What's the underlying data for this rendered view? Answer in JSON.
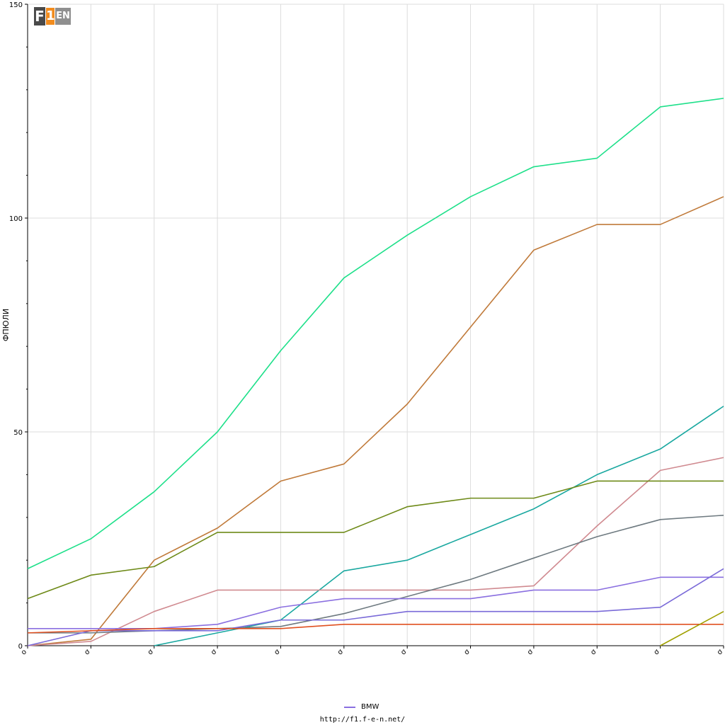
{
  "logo": {
    "text": "F1EN",
    "parts": [
      "F",
      "1",
      "EN"
    ],
    "colors": {
      "dark": "#4a4a4a",
      "orange": "#f28c1e",
      "gray": "#8f8f8f"
    }
  },
  "footer": {
    "url": "http://f1.f-e-n.net/"
  },
  "chart_data": {
    "type": "line",
    "title": "",
    "xlabel": "",
    "ylabel": "ФПЮЛИ",
    "ylim": [
      0,
      150
    ],
    "y_ticks": [
      0,
      50,
      100,
      150
    ],
    "x_tick_labels": [
      "o",
      "ơ",
      "ơ",
      "ơ",
      "ơ",
      "ơ",
      "ơ",
      "ơ",
      "ơ",
      "ơ",
      "ơ",
      "ơ"
    ],
    "grid": true,
    "legend_position": "bottom-center",
    "legend": [
      {
        "name": "BMW",
        "color": "#8a6fe0"
      }
    ],
    "series": [
      {
        "color": "#1ee08a",
        "values": [
          18,
          25,
          36,
          50,
          69,
          86,
          96,
          105,
          112,
          114,
          126,
          128
        ]
      },
      {
        "color": "#c07a3a",
        "values": [
          0,
          1.5,
          20,
          27.5,
          38.5,
          42.5,
          56.5,
          74.5,
          92.5,
          98.5,
          98.5,
          105
        ]
      },
      {
        "color": "#1aa8a0",
        "values": [
          null,
          null,
          0,
          3,
          6,
          17.5,
          20,
          26,
          32,
          40,
          46,
          56
        ]
      },
      {
        "color": "#d08a90",
        "values": [
          0,
          1,
          8,
          13,
          13,
          13,
          13,
          13,
          14,
          28,
          41,
          44
        ]
      },
      {
        "color": "#6e8a18",
        "values": [
          11,
          16.5,
          18.5,
          26.5,
          26.5,
          26.5,
          32.5,
          34.5,
          34.5,
          38.5,
          38.5,
          38.5
        ]
      },
      {
        "color": "#6e7a80",
        "values": [
          3,
          3,
          3.5,
          4,
          4.5,
          7.5,
          11.5,
          15.5,
          20.5,
          25.5,
          29.5,
          30.5
        ]
      },
      {
        "color": "#8a6fe0",
        "values": [
          4,
          4,
          4,
          5,
          9,
          11,
          11,
          11,
          13,
          13,
          16,
          16
        ]
      },
      {
        "color": "#7a6ad8",
        "values": [
          0,
          3.5,
          3.5,
          3.5,
          6,
          6,
          8,
          8,
          8,
          8,
          9,
          18
        ]
      },
      {
        "color": "#e05020",
        "values": [
          3,
          3.5,
          4,
          4,
          4,
          5,
          5,
          5,
          5,
          5,
          5,
          5
        ]
      },
      {
        "color": "#a0a000",
        "values": [
          null,
          null,
          null,
          null,
          null,
          null,
          null,
          null,
          null,
          null,
          0,
          8
        ]
      }
    ]
  }
}
